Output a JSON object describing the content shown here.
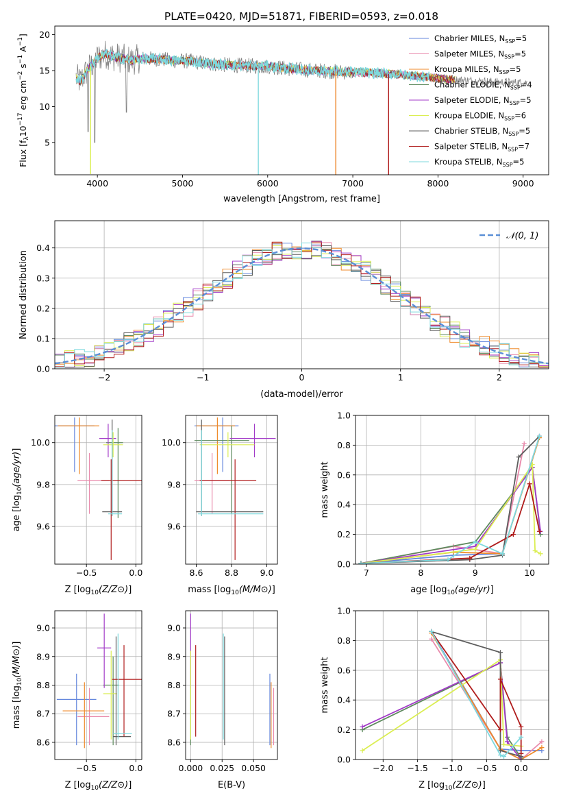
{
  "figure_title": "PLATE=0420, MJD=51871, FIBERID=0593, z=0.018",
  "colors": {
    "Chabrier MILES": "#6487dd",
    "Salpeter MILES": "#e98aac",
    "Kroupa MILES": "#ef8a2a",
    "Chabrier ELODIE": "#5e8a5e",
    "Salpeter ELODIE": "#a23ac8",
    "Kroupa ELODIE": "#dbee52",
    "Chabrier STELIB": "#5d5d5d",
    "Salpeter STELIB": "#b01c1c",
    "Kroupa STELIB": "#7dd9de",
    "normal": "#5b8fd6",
    "grid": "#b0b0b0"
  },
  "chart_data": [
    {
      "id": "spectrum",
      "type": "line",
      "xlabel": "wavelength [Angstrom, rest frame]",
      "ylabel": "Flux [f",
      "ylabel_full": "Flux [fλ10⁻¹⁷ erg cm⁻² s⁻¹ A⁻¹]",
      "xlim": [
        3500,
        9300
      ],
      "ylim": [
        0.5,
        21.2
      ],
      "xticks": [
        4000,
        5000,
        6000,
        7000,
        8000,
        9000
      ],
      "yticks": [
        5,
        10,
        15,
        20
      ],
      "grid": false,
      "legend_position": "top-right",
      "legend": [
        {
          "label": "Chabrier MILES, N",
          "ssp": "5"
        },
        {
          "label": "Salpeter MILES, N",
          "ssp": "5"
        },
        {
          "label": "Kroupa MILES, N",
          "ssp": "5"
        },
        {
          "label": "Chabrier ELODIE, N",
          "ssp": "4"
        },
        {
          "label": "Salpeter ELODIE, N",
          "ssp": "5"
        },
        {
          "label": "Kroupa ELODIE, N",
          "ssp": "6"
        },
        {
          "label": "Chabrier STELIB, N",
          "ssp": "5"
        },
        {
          "label": "Salpeter STELIB, N",
          "ssp": "7"
        },
        {
          "label": "Kroupa STELIB, N",
          "ssp": "5"
        }
      ],
      "continuum": [
        [
          3750,
          14
        ],
        [
          3800,
          13.5
        ],
        [
          3850,
          14.5
        ],
        [
          3900,
          15.3
        ],
        [
          3950,
          16
        ],
        [
          4000,
          16.8
        ],
        [
          4100,
          17.3
        ],
        [
          4200,
          16.9
        ],
        [
          4300,
          16.7
        ],
        [
          4400,
          16.4
        ],
        [
          4500,
          16.7
        ],
        [
          4700,
          16.6
        ],
        [
          4900,
          16.4
        ],
        [
          5100,
          16.3
        ],
        [
          5300,
          16
        ],
        [
          5500,
          15.8
        ],
        [
          5700,
          15.7
        ],
        [
          6000,
          15.6
        ],
        [
          6300,
          15.2
        ],
        [
          6600,
          15
        ],
        [
          6900,
          14.8
        ],
        [
          7200,
          14.7
        ],
        [
          7500,
          14.5
        ],
        [
          7800,
          14.2
        ],
        [
          8100,
          13.8
        ],
        [
          8400,
          13.6
        ],
        [
          8700,
          13.4
        ],
        [
          9050,
          13.3
        ]
      ],
      "kroupa_stelib_range": [
        3750,
        7900
      ],
      "observed_range": [
        3750,
        9050
      ],
      "dips": [
        {
          "series": "Kroupa ELODIE",
          "x": 3920,
          "y": 0.6
        },
        {
          "series": "Kroupa STELIB",
          "x": 5890,
          "y": 0.5
        },
        {
          "series": "Salpeter MILES",
          "x": 6800,
          "y": 0.5
        },
        {
          "series": "Kroupa MILES",
          "x": 6800,
          "y": 0.5
        },
        {
          "series": "Salpeter STELIB",
          "x": 7420,
          "y": 0.5
        }
      ]
    },
    {
      "id": "residuals",
      "type": "histogram",
      "xlabel": "(data-model)/error",
      "ylabel": "Normed distribution",
      "xlim": [
        -2.5,
        2.5
      ],
      "ylim": [
        0,
        0.49
      ],
      "xticks": [
        -2,
        -1,
        0,
        1,
        2
      ],
      "yticks": [
        0.0,
        0.1,
        0.2,
        0.3,
        0.4
      ],
      "grid": true,
      "legend_position": "top-right",
      "legend_label": "𝒩(0, 1)",
      "bin_width": 0.1,
      "normal_mean": 0,
      "normal_sigma": 1
    },
    {
      "id": "z-age",
      "type": "errorbar",
      "xlabel": "Z [log",
      "xlabel_full": "Z [log10(Z/Z⊙)]",
      "ylabel": "age  [log",
      "ylabel_full": "age [log10(age/yr)]",
      "xlim": [
        -0.82,
        0.06
      ],
      "ylim": [
        9.42,
        10.13
      ],
      "xticks": [
        -0.5,
        0.0
      ],
      "yticks": [
        9.6,
        9.8,
        10.0
      ],
      "grid": true,
      "points": [
        {
          "series": "Chabrier MILES",
          "x": -0.62,
          "xerr": [
            0.2,
            0.2
          ],
          "y": 10.08,
          "yerr": [
            0.22,
            0.04
          ]
        },
        {
          "series": "Salpeter MILES",
          "x": -0.47,
          "xerr": [
            0.12,
            0.2
          ],
          "y": 9.82,
          "yerr": [
            0.16,
            0.13
          ]
        },
        {
          "series": "Kroupa MILES",
          "x": -0.57,
          "xerr": [
            0.22,
            0.2
          ],
          "y": 10.08,
          "yerr": [
            0.23,
            0.04
          ]
        },
        {
          "series": "Chabrier ELODIE",
          "x": -0.18,
          "xerr": [
            0.12,
            0.05
          ],
          "y": 10.0,
          "yerr": [
            0.36,
            0.07
          ]
        },
        {
          "series": "Salpeter ELODIE",
          "x": -0.28,
          "xerr": [
            0.09,
            0.08
          ],
          "y": 10.02,
          "yerr": [
            0.09,
            0.07
          ]
        },
        {
          "series": "Kroupa ELODIE",
          "x": -0.23,
          "xerr": [
            0.1,
            0.1
          ],
          "y": 9.99,
          "yerr": [
            0.06,
            0.06
          ]
        },
        {
          "series": "Chabrier STELIB",
          "x": -0.24,
          "xerr": [
            0.1,
            0.1
          ],
          "y": 9.67,
          "yerr": [
            0.02,
            0.44
          ]
        },
        {
          "series": "Salpeter STELIB",
          "x": -0.25,
          "xerr": [
            0.1,
            0.35
          ],
          "y": 9.82,
          "yerr": [
            0.38,
            0.1
          ]
        },
        {
          "series": "Kroupa STELIB",
          "x": -0.24,
          "xerr": [
            0.04,
            0.1
          ],
          "y": 9.66,
          "yerr": [
            0.01,
            0.4
          ]
        }
      ]
    },
    {
      "id": "mass-age",
      "type": "errorbar",
      "xlabel": "mass [log",
      "xlabel_full": "mass [log10(M/M⊙)]",
      "xlim": [
        8.54,
        9.06
      ],
      "ylim": [
        9.42,
        10.13
      ],
      "xticks": [
        8.6,
        8.8,
        9.0
      ],
      "yticks": [
        9.6,
        9.8,
        10.0
      ],
      "grid": true,
      "points": [
        {
          "series": "Chabrier MILES",
          "x": 8.75,
          "xerr": [
            0.16,
            0.09
          ],
          "y": 10.08,
          "yerr": [
            0.22,
            0.04
          ]
        },
        {
          "series": "Salpeter MILES",
          "x": 8.69,
          "xerr": [
            0.1,
            0.1
          ],
          "y": 9.82,
          "yerr": [
            0.16,
            0.13
          ]
        },
        {
          "series": "Kroupa MILES",
          "x": 8.72,
          "xerr": [
            0.12,
            0.1
          ],
          "y": 10.08,
          "yerr": [
            0.23,
            0.04
          ]
        },
        {
          "series": "Chabrier ELODIE",
          "x": 8.8,
          "xerr": [
            0.21,
            0.1
          ],
          "y": 10.01,
          "yerr": [
            0.35,
            0.07
          ]
        },
        {
          "series": "Salpeter ELODIE",
          "x": 8.93,
          "xerr": [
            0.14,
            0.12
          ],
          "y": 10.02,
          "yerr": [
            0.09,
            0.07
          ]
        },
        {
          "series": "Kroupa ELODIE",
          "x": 8.78,
          "xerr": [
            0.16,
            0.15
          ],
          "y": 9.99,
          "yerr": [
            0.06,
            0.06
          ]
        },
        {
          "series": "Chabrier STELIB",
          "x": 8.63,
          "xerr": [
            0.03,
            0.35
          ],
          "y": 9.67,
          "yerr": [
            0.02,
            0.44
          ]
        },
        {
          "series": "Salpeter STELIB",
          "x": 8.82,
          "xerr": [
            0.2,
            0.12
          ],
          "y": 9.82,
          "yerr": [
            0.38,
            0.1
          ]
        },
        {
          "series": "Kroupa STELIB",
          "x": 8.63,
          "xerr": [
            0.02,
            0.35
          ],
          "y": 9.66,
          "yerr": [
            0.01,
            0.4
          ]
        }
      ]
    },
    {
      "id": "age-weight",
      "type": "line",
      "xlabel": "age  [log",
      "xlabel_full": "age [log10(age/yr)]",
      "ylabel": "mass weight",
      "xlim": [
        6.8,
        10.35
      ],
      "ylim": [
        0,
        1.0
      ],
      "xticks": [
        7,
        8,
        9,
        10
      ],
      "yticks": [
        0.0,
        0.2,
        0.4,
        0.6,
        0.8,
        1.0
      ],
      "grid": true,
      "series": [
        {
          "name": "Chabrier MILES",
          "x": [
            6.9,
            8.6,
            9.5,
            10.18
          ],
          "y": [
            0.005,
            0.06,
            0.07,
            0.86
          ]
        },
        {
          "name": "Salpeter MILES",
          "x": [
            6.9,
            8.6,
            9.5,
            9.9
          ],
          "y": [
            0.005,
            0.12,
            0.07,
            0.81
          ]
        },
        {
          "name": "Kroupa MILES",
          "x": [
            6.9,
            8.6,
            9.5,
            10.18
          ],
          "y": [
            0.005,
            0.08,
            0.07,
            0.85
          ]
        },
        {
          "name": "Chabrier ELODIE",
          "x": [
            6.9,
            9.0,
            10.05,
            10.2
          ],
          "y": [
            0.005,
            0.15,
            0.65,
            0.2
          ]
        },
        {
          "name": "Salpeter ELODIE",
          "x": [
            6.9,
            9.0,
            10.05,
            10.2
          ],
          "y": [
            0.005,
            0.12,
            0.65,
            0.22
          ]
        },
        {
          "name": "Kroupa ELODIE",
          "x": [
            6.9,
            9.0,
            10.05,
            10.1,
            10.2
          ],
          "y": [
            0.005,
            0.1,
            0.67,
            0.09,
            0.07
          ]
        },
        {
          "name": "Chabrier STELIB",
          "x": [
            6.9,
            8.9,
            9.5,
            9.8,
            10.18
          ],
          "y": [
            0.005,
            0.03,
            0.06,
            0.72,
            0.86
          ]
        },
        {
          "name": "Salpeter STELIB",
          "x": [
            6.9,
            8.9,
            9.7,
            10.0,
            10.18
          ],
          "y": [
            0.005,
            0.04,
            0.2,
            0.54,
            0.22
          ]
        },
        {
          "name": "Kroupa STELIB",
          "x": [
            6.9,
            8.5,
            9.0,
            9.5,
            10.18
          ],
          "y": [
            0.005,
            0.03,
            0.15,
            0.07,
            0.86
          ]
        }
      ]
    },
    {
      "id": "z-mass",
      "type": "errorbar",
      "xlabel": "Z [log",
      "xlabel_full": "Z [log10(Z/Z⊙)]",
      "ylabel": "mass [log",
      "ylabel_full": "mass [log10(M/M⊙)]",
      "xlim": [
        -0.82,
        0.06
      ],
      "ylim": [
        8.54,
        9.06
      ],
      "xticks": [
        -0.5,
        0.0
      ],
      "yticks": [
        8.6,
        8.7,
        8.8,
        8.9,
        9.0
      ],
      "grid": true,
      "points": [
        {
          "series": "Chabrier MILES",
          "x": -0.6,
          "xerr": [
            0.2,
            0.2
          ],
          "y": 8.75,
          "yerr": [
            0.16,
            0.09
          ]
        },
        {
          "series": "Salpeter MILES",
          "x": -0.47,
          "xerr": [
            0.12,
            0.2
          ],
          "y": 8.69,
          "yerr": [
            0.1,
            0.1
          ]
        },
        {
          "series": "Kroupa MILES",
          "x": -0.52,
          "xerr": [
            0.22,
            0.2
          ],
          "y": 8.71,
          "yerr": [
            0.13,
            0.1
          ]
        },
        {
          "series": "Chabrier ELODIE",
          "x": -0.23,
          "xerr": [
            0.1,
            0.06
          ],
          "y": 8.8,
          "yerr": [
            0.21,
            0.1
          ]
        },
        {
          "series": "Salpeter ELODIE",
          "x": -0.32,
          "xerr": [
            0.07,
            0.07
          ],
          "y": 8.93,
          "yerr": [
            0.14,
            0.12
          ]
        },
        {
          "series": "Kroupa ELODIE",
          "x": -0.25,
          "xerr": [
            0.08,
            0.06
          ],
          "y": 8.77,
          "yerr": [
            0.16,
            0.15
          ]
        },
        {
          "series": "Chabrier STELIB",
          "x": -0.2,
          "xerr": [
            0.03,
            0.15
          ],
          "y": 8.62,
          "yerr": [
            0.03,
            0.35
          ]
        },
        {
          "series": "Salpeter STELIB",
          "x": -0.12,
          "xerr": [
            0.12,
            0.2
          ],
          "y": 8.82,
          "yerr": [
            0.2,
            0.12
          ]
        },
        {
          "series": "Kroupa STELIB",
          "x": -0.18,
          "xerr": [
            0.05,
            0.14
          ],
          "y": 8.63,
          "yerr": [
            0.02,
            0.35
          ]
        }
      ]
    },
    {
      "id": "ebv-mass",
      "type": "errorbar",
      "xlabel": "E(B-V)",
      "xlim": [
        -0.004,
        0.069
      ],
      "ylim": [
        8.54,
        9.06
      ],
      "xticks": [
        0.0,
        0.025,
        0.05
      ],
      "yticks": [
        8.6,
        8.7,
        8.8,
        8.9,
        9.0
      ],
      "grid": true,
      "points": [
        {
          "series": "Chabrier MILES",
          "x": 0.063,
          "y": 8.75,
          "yerr": [
            0.16,
            0.09
          ]
        },
        {
          "series": "Salpeter MILES",
          "x": 0.066,
          "y": 8.69,
          "yerr": [
            0.1,
            0.1
          ]
        },
        {
          "series": "Kroupa MILES",
          "x": 0.064,
          "y": 8.71,
          "yerr": [
            0.13,
            0.1
          ]
        },
        {
          "series": "Chabrier ELODIE",
          "x": 0.0,
          "y": 8.8,
          "yerr": [
            0.21,
            0.1
          ]
        },
        {
          "series": "Salpeter ELODIE",
          "x": 0.0,
          "y": 8.93,
          "yerr": [
            0.14,
            0.12
          ]
        },
        {
          "series": "Kroupa ELODIE",
          "x": 0.0,
          "y": 8.77,
          "yerr": [
            0.16,
            0.15
          ]
        },
        {
          "series": "Chabrier STELIB",
          "x": 0.027,
          "y": 8.62,
          "yerr": [
            0.03,
            0.35
          ]
        },
        {
          "series": "Salpeter STELIB",
          "x": 0.004,
          "y": 8.82,
          "yerr": [
            0.2,
            0.12
          ]
        },
        {
          "series": "Kroupa STELIB",
          "x": 0.026,
          "y": 8.63,
          "yerr": [
            0.02,
            0.35
          ]
        }
      ]
    },
    {
      "id": "z-weight",
      "type": "line",
      "xlabel": "Z [log",
      "xlabel_full": "Z [log10(Z/Z⊙)]",
      "ylabel": "mass weight",
      "xlim": [
        -2.4,
        0.4
      ],
      "ylim": [
        0,
        1.0
      ],
      "xticks": [
        -2.0,
        -1.5,
        -1.0,
        -0.5,
        0.0
      ],
      "yticks": [
        0.0,
        0.2,
        0.4,
        0.6,
        0.8,
        1.0
      ],
      "grid": true,
      "series": [
        {
          "name": "Chabrier MILES",
          "x": [
            -1.3,
            -0.3,
            0.0,
            0.3
          ],
          "y": [
            0.86,
            0.07,
            0.06,
            0.06
          ]
        },
        {
          "name": "Salpeter MILES",
          "x": [
            -1.3,
            -0.3,
            0.0,
            0.3
          ],
          "y": [
            0.81,
            0.07,
            0.0,
            0.12
          ]
        },
        {
          "name": "Kroupa MILES",
          "x": [
            -1.3,
            -0.3,
            0.0,
            0.3
          ],
          "y": [
            0.85,
            0.07,
            0.0,
            0.08
          ]
        },
        {
          "name": "Chabrier ELODIE",
          "x": [
            -2.3,
            -0.3,
            -0.2,
            0.0
          ],
          "y": [
            0.2,
            0.65,
            0.15,
            0.01
          ]
        },
        {
          "name": "Salpeter ELODIE",
          "x": [
            -2.3,
            -0.3,
            -0.2,
            0.0
          ],
          "y": [
            0.22,
            0.65,
            0.12,
            0.0
          ]
        },
        {
          "name": "Kroupa ELODIE",
          "x": [
            -2.3,
            -0.3,
            -0.25,
            0.0
          ],
          "y": [
            0.06,
            0.67,
            0.1,
            0.09
          ]
        },
        {
          "name": "Chabrier STELIB",
          "x": [
            -1.3,
            -0.3,
            -0.3,
            0.0,
            0.0
          ],
          "y": [
            0.86,
            0.72,
            0.06,
            0.02,
            0.04
          ]
        },
        {
          "name": "Salpeter STELIB",
          "x": [
            -1.3,
            -0.3,
            -0.3,
            0.0,
            0.0
          ],
          "y": [
            0.86,
            0.2,
            0.54,
            0.22,
            0.04
          ]
        },
        {
          "name": "Kroupa STELIB",
          "x": [
            -1.3,
            -0.3,
            -0.25,
            0.0
          ],
          "y": [
            0.86,
            0.03,
            0.02,
            0.15
          ]
        }
      ]
    }
  ]
}
